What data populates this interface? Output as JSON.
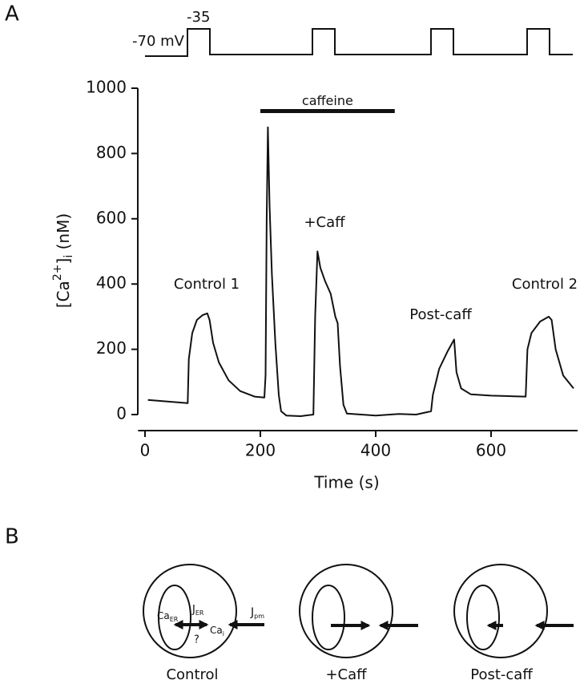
{
  "chart_data": {
    "type": "line",
    "panel_label": "A",
    "xlabel": "Time (s)",
    "ylabel": [
      "[Ca",
      "2+",
      "]",
      "i",
      " (nM)"
    ],
    "xlim": [
      -12,
      750
    ],
    "ylim": [
      0,
      1000
    ],
    "xticks": [
      0,
      200,
      400,
      600
    ],
    "yticks": [
      0,
      200,
      400,
      600,
      800,
      1000
    ],
    "color": "#111111",
    "x": [
      5,
      74,
      76,
      82,
      90,
      100,
      108,
      112,
      118,
      128,
      145,
      165,
      190,
      207,
      209,
      211,
      213,
      216,
      220,
      226,
      232,
      236,
      245,
      270,
      292,
      295,
      299,
      304,
      312,
      322,
      330,
      334,
      338,
      344,
      350,
      400,
      440,
      470,
      496,
      499,
      510,
      525,
      536,
      540,
      548,
      565,
      600,
      640,
      660,
      663,
      670,
      685,
      700,
      705,
      712,
      725,
      743
    ],
    "values": [
      45,
      35,
      170,
      250,
      290,
      305,
      310,
      290,
      220,
      160,
      105,
      72,
      55,
      52,
      120,
      600,
      880,
      640,
      430,
      220,
      60,
      10,
      -3,
      -5,
      0,
      300,
      500,
      450,
      410,
      370,
      300,
      280,
      150,
      30,
      3,
      -3,
      2,
      0,
      10,
      60,
      140,
      195,
      230,
      130,
      80,
      62,
      58,
      56,
      55,
      200,
      250,
      285,
      300,
      290,
      200,
      120,
      80
    ],
    "caffeine_label": "caffeine",
    "caffeine_bar": {
      "x": [
        200,
        433
      ],
      "y": 930
    },
    "annotations": [
      "Control 1",
      "+Caff",
      "Post-caff",
      "Control 2"
    ],
    "protocol": {
      "holding": "-70 mV",
      "step": "-35"
    }
  },
  "diagram": {
    "panel_label": "B",
    "panels": [
      "Control",
      "+Caff",
      "Post-caff"
    ],
    "labels": {
      "ca_er": [
        "Ca",
        "ER"
      ],
      "j_er": [
        "J",
        "ER"
      ],
      "ca_i": [
        "Ca",
        "i"
      ],
      "j_pm": [
        "J",
        "pm"
      ],
      "unknown": "?"
    }
  }
}
